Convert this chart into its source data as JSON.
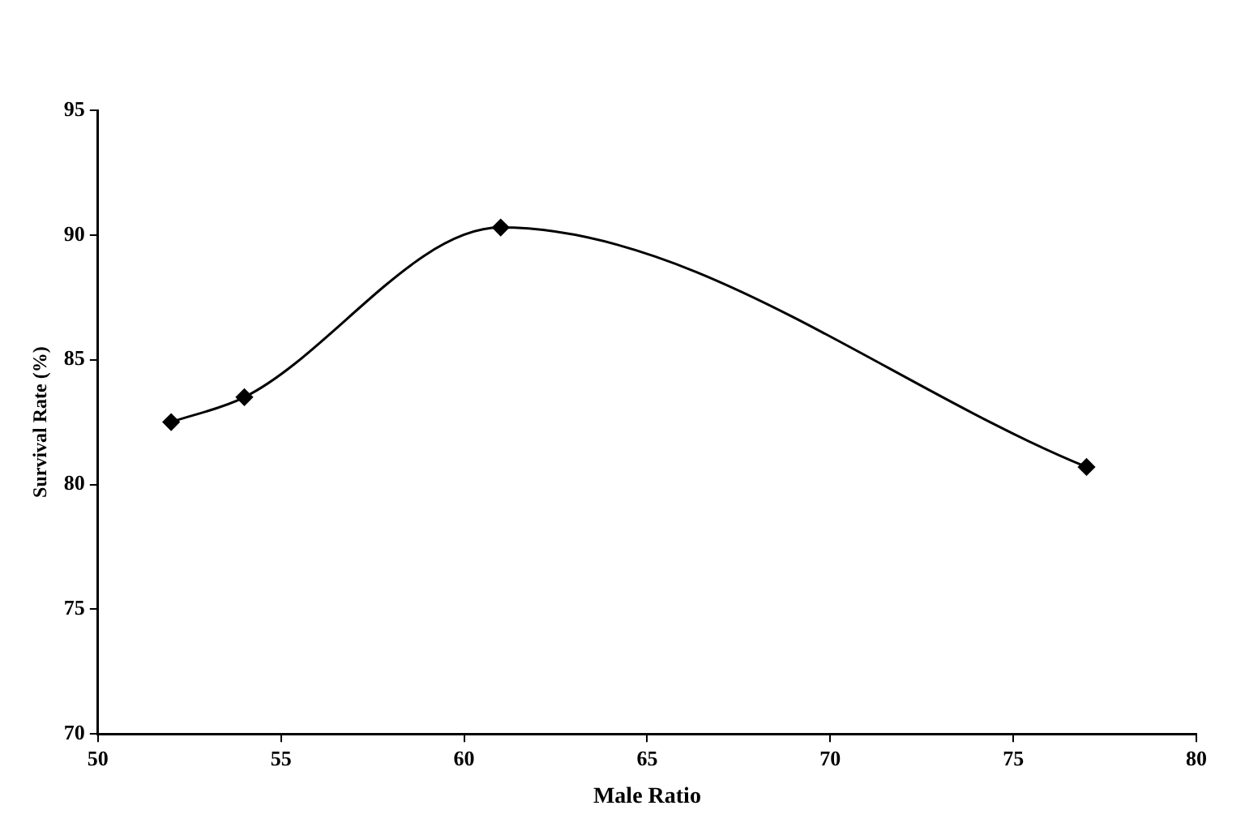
{
  "chart_data": {
    "type": "line",
    "xlabel": "Male Ratio",
    "ylabel": "Survival Rate (%)",
    "x": [
      52,
      54,
      61,
      77
    ],
    "series": [
      {
        "color": "#000000",
        "values": [
          82.5,
          83.5,
          90.3,
          80.7
        ]
      }
    ],
    "xlim": [
      50,
      80
    ],
    "xticks": [
      50,
      55,
      60,
      65,
      70,
      75,
      80
    ],
    "ylim": [
      70,
      95
    ],
    "yticks": [
      70,
      75,
      80,
      85,
      90,
      95
    ],
    "grid": false,
    "legend": false,
    "marker": "diamond",
    "line_style": "solid"
  }
}
